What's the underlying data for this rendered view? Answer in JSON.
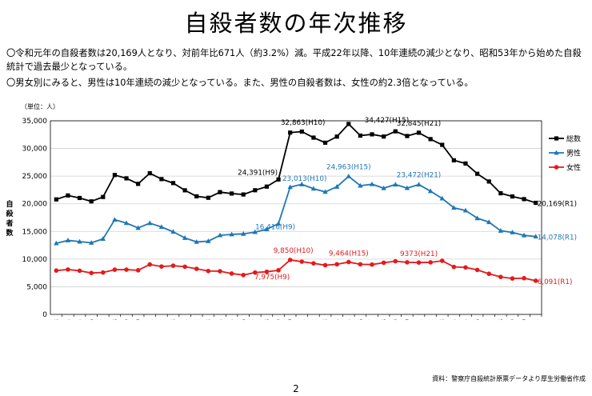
{
  "page": {
    "title": "自殺者数の年次推移",
    "bullets": [
      "〇令和元年の自殺者数は20,169人となり、対前年比671人（約3.2%）減。平成22年以降、10年連続の減少となり、昭和53年から始めた自殺統計で過去最少となっている。",
      "〇男女別にみると、男性は10年連続の減少となっている。また、男性の自殺者数は、女性の約2.3倍となっている。"
    ],
    "source": "資料：警察庁自殺統計原票データより厚生労働省作成",
    "page_number": "2"
  },
  "chart_data": {
    "type": "line",
    "unit_label": "（単位：人）",
    "ylabel": "自殺者数",
    "ylim": [
      0,
      35000
    ],
    "yticks": [
      0,
      5000,
      10000,
      15000,
      20000,
      25000,
      30000,
      35000
    ],
    "ytick_labels": [
      "0",
      "5,000",
      "10,000",
      "15,000",
      "20,000",
      "25,000",
      "30,000",
      "35,000"
    ],
    "grid": "horizontal",
    "legend_position": "right",
    "categories": [
      "S53",
      "S54",
      "S55",
      "S56",
      "S57",
      "S58",
      "S59",
      "S60",
      "S61",
      "S62",
      "S63",
      "H1",
      "H2",
      "H3",
      "H4",
      "H5",
      "H6",
      "H7",
      "H8",
      "H9",
      "H10",
      "H11",
      "H12",
      "H13",
      "H14",
      "H15",
      "H16",
      "H17",
      "H18",
      "H19",
      "H20",
      "H21",
      "H22",
      "H23",
      "H24",
      "H25",
      "H26",
      "H27",
      "H28",
      "H29",
      "H30",
      "R1"
    ],
    "series": [
      {
        "name": "総数",
        "color": "#000000",
        "marker": "square",
        "values": [
          20788,
          21503,
          21048,
          20434,
          21228,
          25202,
          24596,
          23599,
          25524,
          24460,
          23742,
          22436,
          21346,
          21084,
          22104,
          21851,
          21679,
          22445,
          23104,
          24391,
          32863,
          33048,
          31957,
          31042,
          32143,
          34427,
          32325,
          32552,
          32155,
          33093,
          32249,
          32845,
          31690,
          30651,
          27858,
          27283,
          25427,
          24025,
          21897,
          21321,
          20840,
          20169
        ],
        "annotations": [
          {
            "index": 19,
            "label": "24,391(H9)"
          },
          {
            "index": 20,
            "label": "32,863(H10)"
          },
          {
            "index": 25,
            "label": "34,427(H15)"
          },
          {
            "index": 31,
            "label": "32,845(H21)"
          },
          {
            "index": 41,
            "label": "20,169(R1)"
          }
        ]
      },
      {
        "name": "男性",
        "color": "#1f77b4",
        "marker": "triangle",
        "values": [
          12859,
          13386,
          13155,
          12942,
          13654,
          17116,
          16508,
          15624,
          16497,
          15802,
          14934,
          13818,
          13102,
          13242,
          14296,
          14468,
          14560,
          14874,
          15393,
          16416,
          23013,
          23512,
          22727,
          22144,
          23080,
          24963,
          23272,
          23540,
          22813,
          23478,
          22831,
          23472,
          22283,
          20955,
          19273,
          18787,
          17386,
          16681,
          15121,
          14826,
          14290,
          14078
        ],
        "annotations": [
          {
            "index": 19,
            "label": "16,416(H9)"
          },
          {
            "index": 20,
            "label": "23,013(H10)"
          },
          {
            "index": 25,
            "label": "24,963(H15)"
          },
          {
            "index": 31,
            "label": "23,472(H21)"
          },
          {
            "index": 41,
            "label": "14,078(R1)"
          }
        ]
      },
      {
        "name": "女性",
        "color": "#e31a1c",
        "marker": "circle",
        "values": [
          7929,
          8117,
          7893,
          7492,
          7574,
          8086,
          8088,
          7975,
          9027,
          8658,
          8808,
          8618,
          8244,
          7842,
          7808,
          7383,
          7119,
          7571,
          7711,
          7975,
          9850,
          9536,
          9230,
          8898,
          9063,
          9464,
          9053,
          9012,
          9342,
          9615,
          9418,
          9373,
          9407,
          9696,
          8585,
          8496,
          8041,
          7344,
          6776,
          6495,
          6550,
          6091
        ],
        "annotations": [
          {
            "index": 19,
            "label": "7,975(H9)"
          },
          {
            "index": 20,
            "label": "9,850(H10)"
          },
          {
            "index": 25,
            "label": "9,464(H15)"
          },
          {
            "index": 31,
            "label": "9373(H21)"
          },
          {
            "index": 41,
            "label": "6,091(R1)"
          }
        ]
      }
    ]
  }
}
